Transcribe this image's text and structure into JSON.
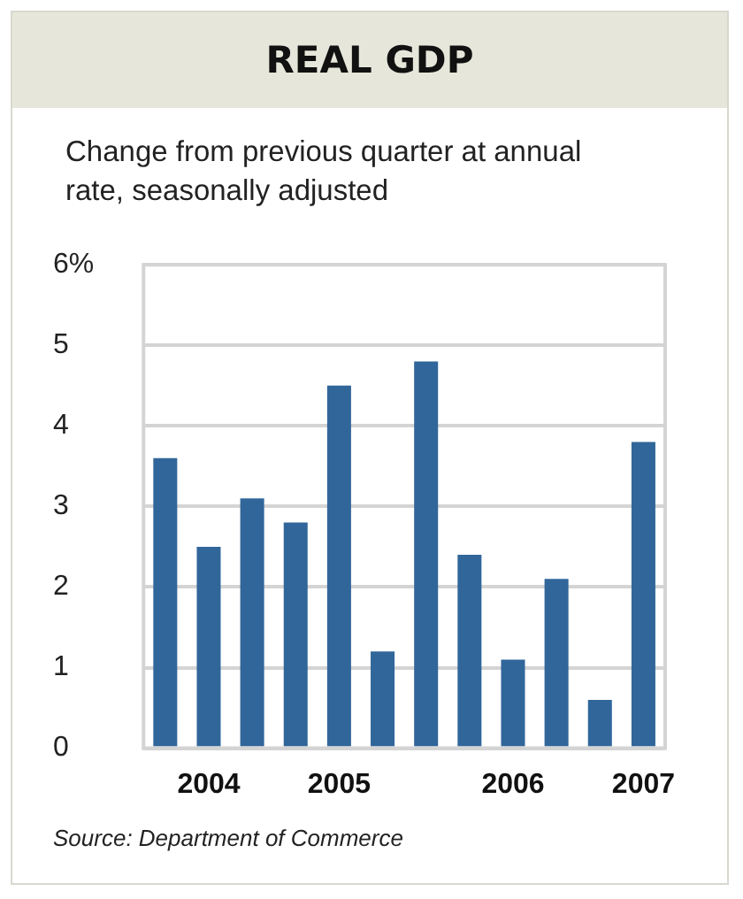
{
  "chart_data": {
    "type": "bar",
    "title": "REAL GDP",
    "subtitle": "Change from previous quarter at annual rate, seasonally adjusted",
    "categories": [
      null,
      "2004",
      null,
      null,
      "2005",
      null,
      null,
      null,
      "2006",
      null,
      null,
      "2007"
    ],
    "values": [
      3.6,
      2.5,
      3.1,
      2.8,
      4.5,
      1.2,
      4.8,
      2.4,
      1.1,
      2.1,
      0.6,
      3.8
    ],
    "color": "#31669a",
    "ylim": [
      0,
      6
    ],
    "yticks": [
      0,
      1,
      2,
      3,
      4,
      5,
      {
        "value": 6,
        "label": "6%"
      }
    ],
    "grid": "y",
    "legend": false,
    "annotations": [
      "Source: Department of Commerce"
    ]
  }
}
